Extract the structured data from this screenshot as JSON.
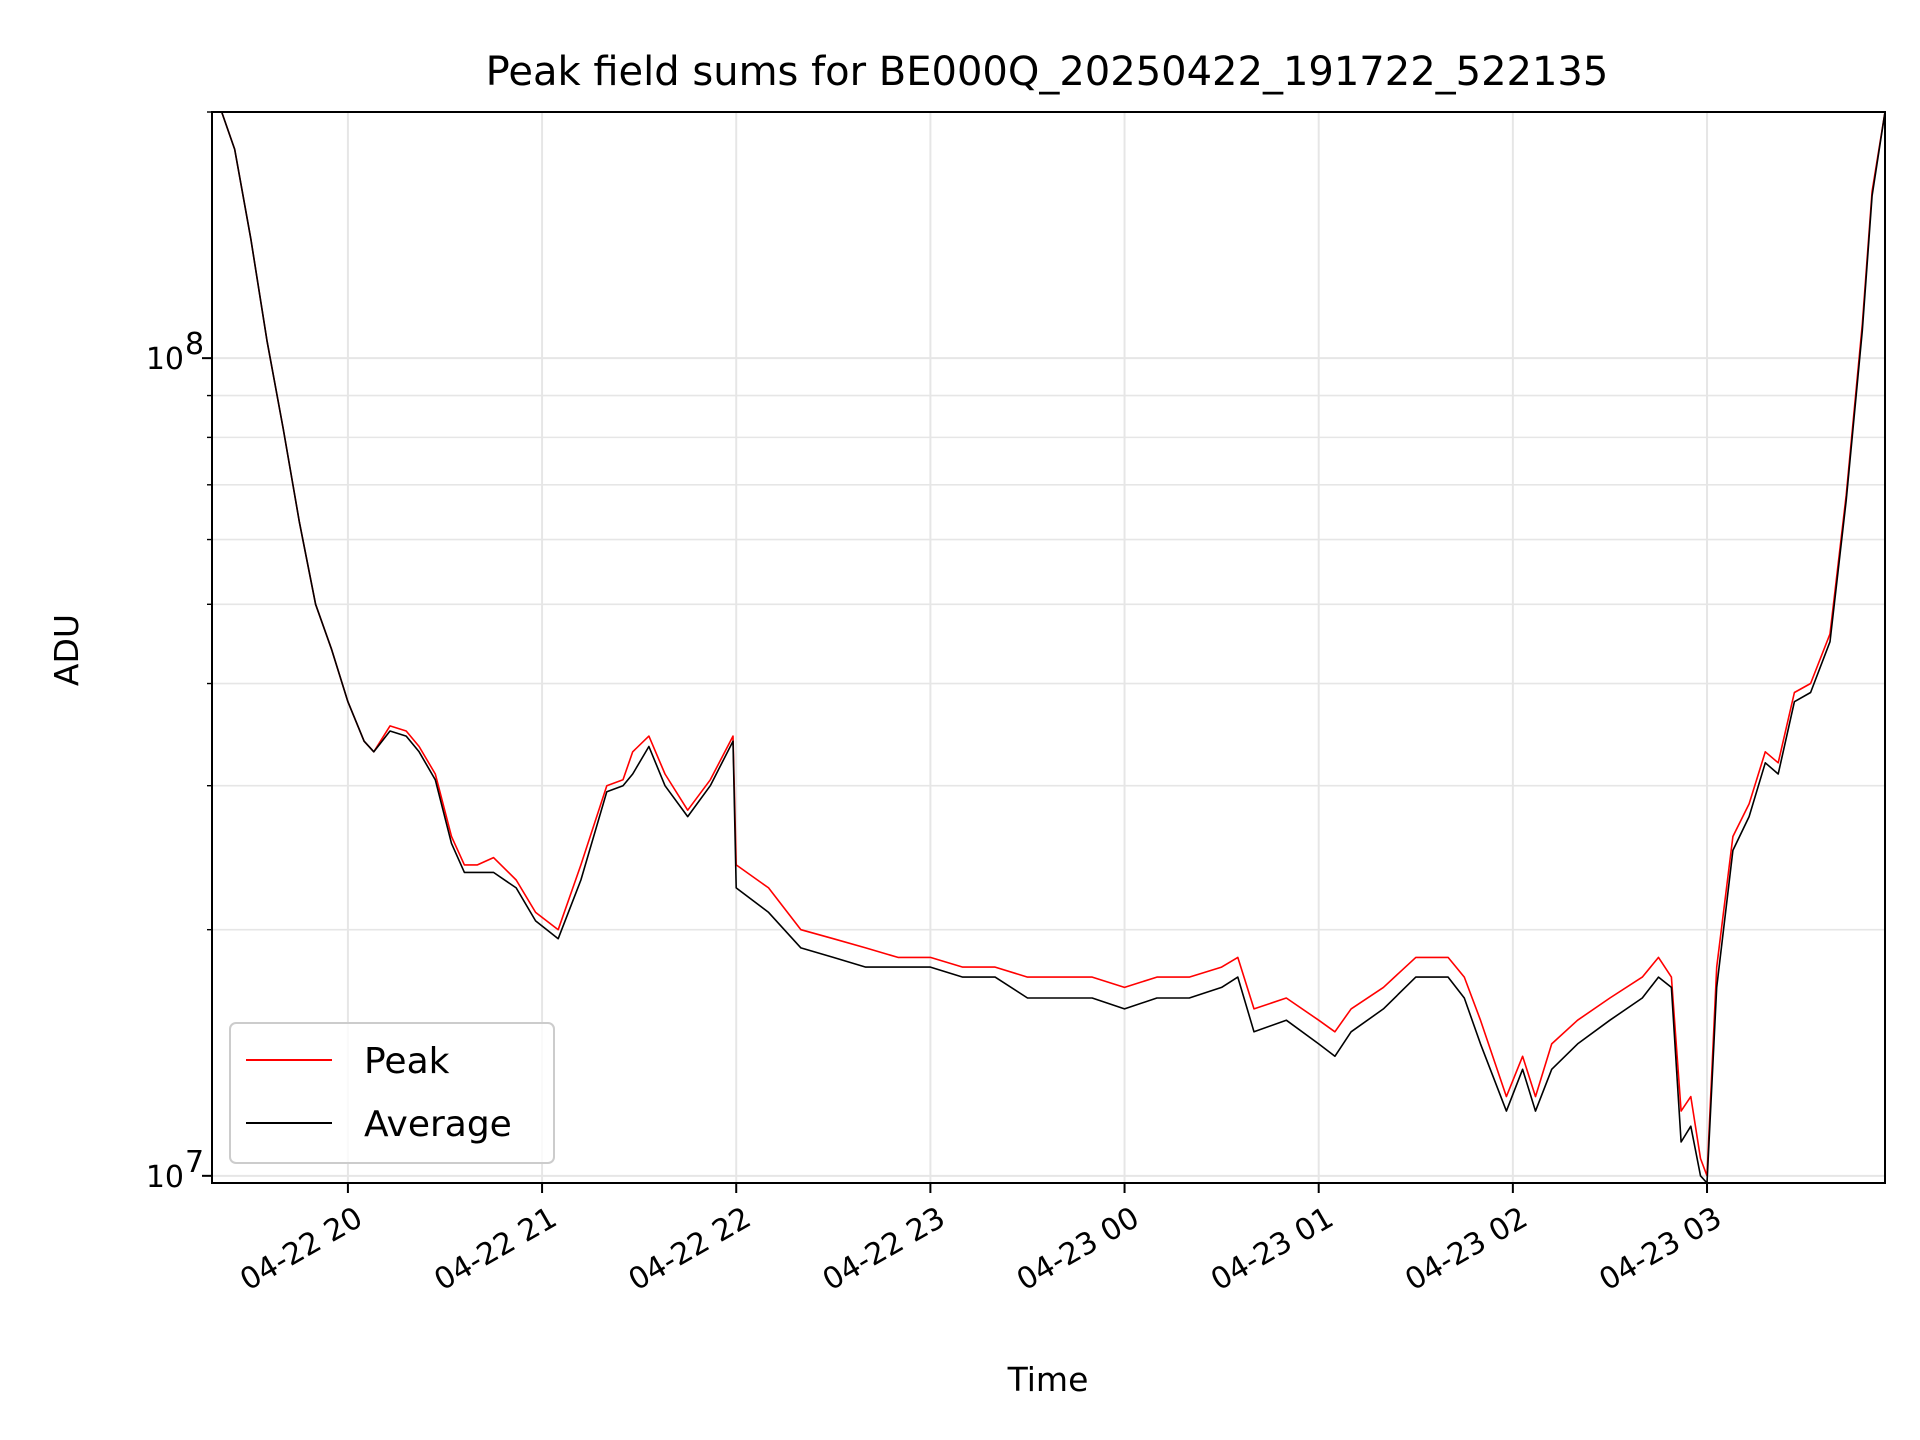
{
  "chart_data": {
    "type": "line",
    "title": "Peak field sums for BE000Q_20250422_191722_522135",
    "xlabel": "Time",
    "ylabel": "ADU",
    "yscale": "log",
    "ylim": [
      9800000,
      200000000
    ],
    "xlim": [
      "2025-04-22 19:18",
      "2025-04-23 03:55"
    ],
    "grid": true,
    "legend_position": "lower-left",
    "x_ticks": [
      {
        "value": "2025-04-22 20:00",
        "label": "04-22 20"
      },
      {
        "value": "2025-04-22 21:00",
        "label": "04-22 21"
      },
      {
        "value": "2025-04-22 22:00",
        "label": "04-22 22"
      },
      {
        "value": "2025-04-22 23:00",
        "label": "04-22 23"
      },
      {
        "value": "2025-04-23 00:00",
        "label": "04-23 00"
      },
      {
        "value": "2025-04-23 01:00",
        "label": "04-23 01"
      },
      {
        "value": "2025-04-23 02:00",
        "label": "04-23 02"
      },
      {
        "value": "2025-04-23 03:00",
        "label": "04-23 03"
      }
    ],
    "y_ticks": [
      {
        "value": 10000000,
        "base": "10",
        "exp": "7"
      },
      {
        "value": 100000000,
        "base": "10",
        "exp": "8"
      }
    ],
    "series": [
      {
        "name": "Peak",
        "color": "#ff0000",
        "x": [
          "2025-04-22 19:18",
          "2025-04-22 19:21",
          "2025-04-22 19:25",
          "2025-04-22 19:30",
          "2025-04-22 19:35",
          "2025-04-22 19:40",
          "2025-04-22 19:45",
          "2025-04-22 19:50",
          "2025-04-22 19:55",
          "2025-04-22 20:00",
          "2025-04-22 20:05",
          "2025-04-22 20:08",
          "2025-04-22 20:13",
          "2025-04-22 20:18",
          "2025-04-22 20:22",
          "2025-04-22 20:27",
          "2025-04-22 20:32",
          "2025-04-22 20:36",
          "2025-04-22 20:40",
          "2025-04-22 20:45",
          "2025-04-22 20:52",
          "2025-04-22 20:58",
          "2025-04-22 21:05",
          "2025-04-22 21:12",
          "2025-04-22 21:20",
          "2025-04-22 21:25",
          "2025-04-22 21:28",
          "2025-04-22 21:33",
          "2025-04-22 21:38",
          "2025-04-22 21:45",
          "2025-04-22 21:52",
          "2025-04-22 21:59",
          "2025-04-22 22:00",
          "2025-04-22 22:10",
          "2025-04-22 22:20",
          "2025-04-22 22:30",
          "2025-04-22 22:40",
          "2025-04-22 22:50",
          "2025-04-22 23:00",
          "2025-04-22 23:10",
          "2025-04-22 23:20",
          "2025-04-22 23:30",
          "2025-04-22 23:40",
          "2025-04-22 23:50",
          "2025-04-23 00:00",
          "2025-04-23 00:10",
          "2025-04-23 00:20",
          "2025-04-23 00:30",
          "2025-04-23 00:35",
          "2025-04-23 00:40",
          "2025-04-23 00:50",
          "2025-04-23 01:00",
          "2025-04-23 01:05",
          "2025-04-23 01:10",
          "2025-04-23 01:20",
          "2025-04-23 01:30",
          "2025-04-23 01:40",
          "2025-04-23 01:45",
          "2025-04-23 01:50",
          "2025-04-23 01:58",
          "2025-04-23 02:03",
          "2025-04-23 02:07",
          "2025-04-23 02:12",
          "2025-04-23 02:20",
          "2025-04-23 02:30",
          "2025-04-23 02:40",
          "2025-04-23 02:45",
          "2025-04-23 02:49",
          "2025-04-23 02:52",
          "2025-04-23 02:55",
          "2025-04-23 02:58",
          "2025-04-23 03:00",
          "2025-04-23 03:03",
          "2025-04-23 03:08",
          "2025-04-23 03:13",
          "2025-04-23 03:18",
          "2025-04-23 03:22",
          "2025-04-23 03:27",
          "2025-04-23 03:32",
          "2025-04-23 03:38",
          "2025-04-23 03:43",
          "2025-04-23 03:48",
          "2025-04-23 03:51",
          "2025-04-23 03:55"
        ],
        "values": [
          200000000,
          200000000,
          180000000,
          140000000,
          105000000,
          82000000,
          63000000,
          50000000,
          44000000,
          38000000,
          34000000,
          33000000,
          35500000,
          35000000,
          33500000,
          31000000,
          26000000,
          24000000,
          24000000,
          24500000,
          23000000,
          21000000,
          20000000,
          24000000,
          30000000,
          30500000,
          33000000,
          34500000,
          31000000,
          28000000,
          30500000,
          34500000,
          24000000,
          22500000,
          20000000,
          19500000,
          19000000,
          18500000,
          18500000,
          18000000,
          18000000,
          17500000,
          17500000,
          17500000,
          17000000,
          17500000,
          17500000,
          18000000,
          18500000,
          16000000,
          16500000,
          15500000,
          15000000,
          16000000,
          17000000,
          18500000,
          18500000,
          17500000,
          15500000,
          12500000,
          14000000,
          12500000,
          14500000,
          15500000,
          16500000,
          17500000,
          18500000,
          17500000,
          12000000,
          12500000,
          10500000,
          10000000,
          18000000,
          26000000,
          28500000,
          33000000,
          32000000,
          39000000,
          40000000,
          46000000,
          68000000,
          110000000,
          160000000,
          200000000
        ]
      },
      {
        "name": "Average",
        "color": "#000000",
        "x": [
          "2025-04-22 19:18",
          "2025-04-22 19:21",
          "2025-04-22 19:25",
          "2025-04-22 19:30",
          "2025-04-22 19:35",
          "2025-04-22 19:40",
          "2025-04-22 19:45",
          "2025-04-22 19:50",
          "2025-04-22 19:55",
          "2025-04-22 20:00",
          "2025-04-22 20:05",
          "2025-04-22 20:08",
          "2025-04-22 20:13",
          "2025-04-22 20:18",
          "2025-04-22 20:22",
          "2025-04-22 20:27",
          "2025-04-22 20:32",
          "2025-04-22 20:36",
          "2025-04-22 20:40",
          "2025-04-22 20:45",
          "2025-04-22 20:52",
          "2025-04-22 20:58",
          "2025-04-22 21:05",
          "2025-04-22 21:12",
          "2025-04-22 21:20",
          "2025-04-22 21:25",
          "2025-04-22 21:28",
          "2025-04-22 21:33",
          "2025-04-22 21:38",
          "2025-04-22 21:45",
          "2025-04-22 21:52",
          "2025-04-22 21:59",
          "2025-04-22 22:00",
          "2025-04-22 22:10",
          "2025-04-22 22:20",
          "2025-04-22 22:30",
          "2025-04-22 22:40",
          "2025-04-22 22:50",
          "2025-04-22 23:00",
          "2025-04-22 23:10",
          "2025-04-22 23:20",
          "2025-04-22 23:30",
          "2025-04-22 23:40",
          "2025-04-22 23:50",
          "2025-04-23 00:00",
          "2025-04-23 00:10",
          "2025-04-23 00:20",
          "2025-04-23 00:30",
          "2025-04-23 00:35",
          "2025-04-23 00:40",
          "2025-04-23 00:50",
          "2025-04-23 01:00",
          "2025-04-23 01:05",
          "2025-04-23 01:10",
          "2025-04-23 01:20",
          "2025-04-23 01:30",
          "2025-04-23 01:40",
          "2025-04-23 01:45",
          "2025-04-23 01:50",
          "2025-04-23 01:58",
          "2025-04-23 02:03",
          "2025-04-23 02:07",
          "2025-04-23 02:12",
          "2025-04-23 02:20",
          "2025-04-23 02:30",
          "2025-04-23 02:40",
          "2025-04-23 02:45",
          "2025-04-23 02:49",
          "2025-04-23 02:52",
          "2025-04-23 02:55",
          "2025-04-23 02:58",
          "2025-04-23 03:00",
          "2025-04-23 03:03",
          "2025-04-23 03:08",
          "2025-04-23 03:13",
          "2025-04-23 03:18",
          "2025-04-23 03:22",
          "2025-04-23 03:27",
          "2025-04-23 03:32",
          "2025-04-23 03:38",
          "2025-04-23 03:43",
          "2025-04-23 03:48",
          "2025-04-23 03:51",
          "2025-04-23 03:55"
        ],
        "values": [
          200000000,
          200000000,
          180000000,
          140000000,
          105000000,
          82000000,
          63000000,
          50000000,
          44000000,
          38000000,
          34000000,
          33000000,
          35000000,
          34500000,
          33000000,
          30500000,
          25500000,
          23500000,
          23500000,
          23500000,
          22500000,
          20500000,
          19500000,
          23000000,
          29500000,
          30000000,
          31000000,
          33500000,
          30000000,
          27500000,
          30000000,
          34000000,
          22500000,
          21000000,
          19000000,
          18500000,
          18000000,
          18000000,
          18000000,
          17500000,
          17500000,
          16500000,
          16500000,
          16500000,
          16000000,
          16500000,
          16500000,
          17000000,
          17500000,
          15000000,
          15500000,
          14500000,
          14000000,
          15000000,
          16000000,
          17500000,
          17500000,
          16500000,
          14500000,
          12000000,
          13500000,
          12000000,
          13500000,
          14500000,
          15500000,
          16500000,
          17500000,
          17000000,
          11000000,
          11500000,
          10000000,
          9800000,
          17000000,
          25000000,
          27500000,
          32000000,
          31000000,
          38000000,
          39000000,
          45000000,
          67000000,
          108000000,
          158000000,
          200000000
        ]
      }
    ]
  }
}
